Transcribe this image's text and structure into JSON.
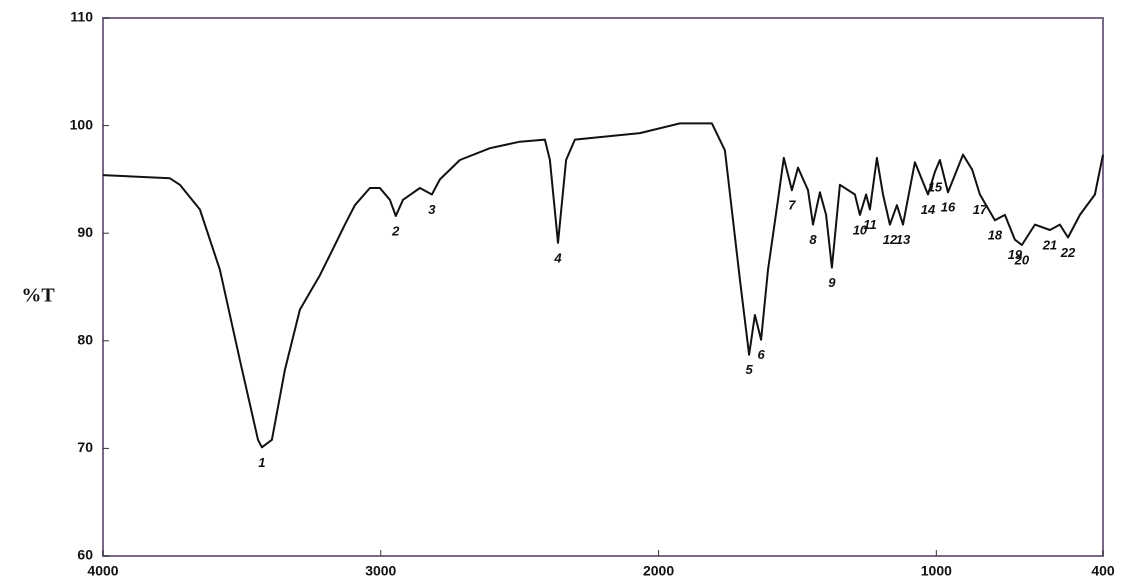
{
  "chart_data": {
    "type": "line",
    "ylabel": "%T",
    "x": [
      4000,
      3759,
      3723,
      3651,
      3579,
      3507,
      3442,
      3428,
      3392,
      3345,
      3291,
      3219,
      3165,
      3129,
      3093,
      3039,
      3003,
      2967,
      2946,
      2920,
      2859,
      2816,
      2787,
      2715,
      2607,
      2499,
      2409,
      2391,
      2362,
      2333,
      2301,
      2067,
      1923,
      1808,
      1761,
      1707,
      1674,
      1653,
      1631,
      1606,
      1570,
      1549,
      1520,
      1498,
      1462,
      1444,
      1419,
      1397,
      1376,
      1347,
      1293,
      1275,
      1253,
      1239,
      1214,
      1192,
      1167,
      1142,
      1120,
      1077,
      1030,
      1005,
      987,
      958,
      904,
      871,
      843,
      789,
      753,
      717,
      692,
      645,
      591,
      555,
      526,
      483,
      429,
      400
    ],
    "values": [
      95.4,
      95.1,
      94.5,
      92.2,
      86.6,
      78.2,
      70.8,
      70.1,
      70.8,
      77.3,
      82.9,
      86.1,
      88.9,
      90.8,
      92.6,
      94.2,
      94.2,
      93.1,
      91.6,
      93.1,
      94.2,
      93.6,
      95.0,
      96.8,
      97.9,
      98.5,
      98.7,
      96.8,
      89.1,
      96.8,
      98.7,
      99.3,
      100.2,
      100.2,
      97.7,
      85.7,
      78.7,
      82.4,
      80.1,
      86.6,
      93.1,
      97.0,
      94.0,
      96.1,
      94.0,
      90.8,
      93.8,
      91.7,
      86.8,
      94.5,
      93.6,
      91.7,
      93.6,
      92.2,
      97.0,
      93.6,
      90.8,
      92.6,
      90.8,
      96.6,
      93.6,
      95.7,
      96.8,
      93.8,
      97.3,
      95.9,
      93.6,
      91.2,
      91.7,
      89.4,
      88.9,
      90.8,
      90.3,
      90.8,
      89.6,
      91.7,
      93.6,
      97.3
    ],
    "color": "#111111",
    "xlim": [
      4000,
      400
    ],
    "xticks": [
      4000,
      3000,
      2000,
      1000,
      400
    ],
    "ylim": [
      60,
      110
    ],
    "yticks": [
      60,
      70,
      80,
      90,
      100,
      110
    ],
    "annotations": [
      {
        "text": "1",
        "x": 3428,
        "y": 70.1
      },
      {
        "text": "2",
        "x": 2946,
        "y": 91.6
      },
      {
        "text": "3",
        "x": 2816,
        "y": 93.6
      },
      {
        "text": "4",
        "x": 2362,
        "y": 89.1
      },
      {
        "text": "5",
        "x": 1674,
        "y": 78.7
      },
      {
        "text": "6",
        "x": 1631,
        "y": 80.1
      },
      {
        "text": "7",
        "x": 1520,
        "y": 94.0
      },
      {
        "text": "8",
        "x": 1444,
        "y": 90.8
      },
      {
        "text": "9",
        "x": 1376,
        "y": 86.8
      },
      {
        "text": "10",
        "x": 1275,
        "y": 91.7
      },
      {
        "text": "11",
        "x": 1239,
        "y": 92.2
      },
      {
        "text": "12",
        "x": 1167,
        "y": 90.8
      },
      {
        "text": "13",
        "x": 1120,
        "y": 90.8
      },
      {
        "text": "14",
        "x": 1030,
        "y": 93.6
      },
      {
        "text": "15",
        "x": 1005,
        "y": 95.7
      },
      {
        "text": "16",
        "x": 958,
        "y": 93.8
      },
      {
        "text": "17",
        "x": 843,
        "y": 93.6
      },
      {
        "text": "18",
        "x": 789,
        "y": 91.2
      },
      {
        "text": "19",
        "x": 717,
        "y": 89.4
      },
      {
        "text": "20",
        "x": 692,
        "y": 88.9
      },
      {
        "text": "21",
        "x": 591,
        "y": 90.3
      },
      {
        "text": "22",
        "x": 526,
        "y": 89.6
      }
    ]
  }
}
